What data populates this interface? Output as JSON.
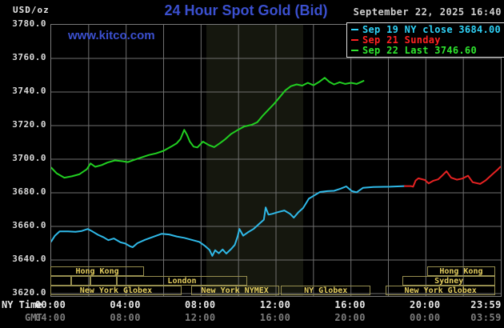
{
  "header": {
    "unit": "USD/oz",
    "title": "24 Hour Spot Gold (Bid)",
    "datetime": "September 22, 2025 16:40",
    "watermark": "www.kitco.com"
  },
  "colors": {
    "title_blue": "#3b50cf",
    "grid": "#6f6f6f",
    "band": "#15170e",
    "blue_line": "#2fb9e8",
    "red_line": "#e62222",
    "green_line": "#21cf21",
    "legend_blue": "#2fd2f7",
    "legend_red": "#ff2222",
    "legend_green": "#2ee52e"
  },
  "legend": [
    {
      "label": "Sep 19 NY close 3684.00",
      "color_key": "legend_blue"
    },
    {
      "label": "Sep 21 Sunday",
      "color_key": "legend_red"
    },
    {
      "label": "Sep 22 Last 3746.60",
      "color_key": "legend_green"
    }
  ],
  "axis": {
    "ny_time_label": "NY Time",
    "gmt_label": "GMT",
    "y_ticks": [
      {
        "value": 3780,
        "label": "3780.0"
      },
      {
        "value": 3760,
        "label": "3760.0"
      },
      {
        "value": 3740,
        "label": "3740.0"
      },
      {
        "value": 3720,
        "label": "3720.0"
      },
      {
        "value": 3700,
        "label": "3700.0"
      },
      {
        "value": 3680,
        "label": "3680.0"
      },
      {
        "value": 3660,
        "label": "3660.0"
      },
      {
        "value": 3640,
        "label": "3640.0"
      },
      {
        "value": 3620,
        "label": "3620.0"
      }
    ],
    "x_ticks": [
      {
        "h": 0,
        "ny": "00:00",
        "gmt": "04:00",
        "shift": 0
      },
      {
        "h": 4,
        "ny": "04:00",
        "gmt": "08:00",
        "shift": 0
      },
      {
        "h": 8,
        "ny": "08:00",
        "gmt": "12:00",
        "shift": 0
      },
      {
        "h": 12,
        "ny": "12:00",
        "gmt": "16:00",
        "shift": 0
      },
      {
        "h": 16,
        "ny": "16:00",
        "gmt": "20:00",
        "shift": 0
      },
      {
        "h": 20,
        "ny": "20:00",
        "gmt": "00:00",
        "shift": 0
      },
      {
        "h": 23.983,
        "ny": "23:59",
        "gmt": "03:59",
        "shift": -17
      }
    ]
  },
  "chart_data": {
    "type": "line",
    "title": "24 Hour Spot Gold (Bid)",
    "ylabel": "USD/oz",
    "ylim": [
      3620,
      3780
    ],
    "xlim_hours": [
      0,
      24
    ],
    "grid": true,
    "nymex_band_hours": [
      8.3,
      13.45
    ],
    "series": [
      {
        "name": "Sep 19 NY close 3684.00",
        "color_key": "blue_line",
        "points": [
          [
            0,
            3651
          ],
          [
            0.2,
            3654.5
          ],
          [
            0.45,
            3657
          ],
          [
            0.9,
            3657
          ],
          [
            1.3,
            3656.8
          ],
          [
            1.6,
            3657.2
          ],
          [
            1.95,
            3658.5
          ],
          [
            2.2,
            3657
          ],
          [
            2.5,
            3655
          ],
          [
            2.8,
            3653.5
          ],
          [
            3.05,
            3651.8
          ],
          [
            3.35,
            3652.8
          ],
          [
            3.7,
            3650.5
          ],
          [
            3.95,
            3649.8
          ],
          [
            4.2,
            3648.2
          ],
          [
            4.35,
            3647.6
          ],
          [
            4.6,
            3650
          ],
          [
            5.0,
            3652
          ],
          [
            5.5,
            3654
          ],
          [
            5.9,
            3655.6
          ],
          [
            6.3,
            3655.2
          ],
          [
            6.7,
            3654
          ],
          [
            7.1,
            3653.2
          ],
          [
            7.5,
            3652
          ],
          [
            7.9,
            3650.8
          ],
          [
            8.2,
            3648.5
          ],
          [
            8.45,
            3646
          ],
          [
            8.6,
            3642.5
          ],
          [
            8.75,
            3645.8
          ],
          [
            8.95,
            3644
          ],
          [
            9.15,
            3646.3
          ],
          [
            9.35,
            3643.8
          ],
          [
            9.6,
            3646.5
          ],
          [
            9.8,
            3649
          ],
          [
            9.95,
            3654
          ],
          [
            10.05,
            3658.5
          ],
          [
            10.25,
            3654.5
          ],
          [
            10.5,
            3656.5
          ],
          [
            10.8,
            3658.5
          ],
          [
            11.1,
            3661.5
          ],
          [
            11.35,
            3664
          ],
          [
            11.45,
            3671.3
          ],
          [
            11.6,
            3667
          ],
          [
            11.8,
            3667.5
          ],
          [
            12.1,
            3668.5
          ],
          [
            12.45,
            3669.5
          ],
          [
            12.75,
            3667.5
          ],
          [
            12.95,
            3665.2
          ],
          [
            13.2,
            3668.5
          ],
          [
            13.45,
            3671
          ],
          [
            13.75,
            3676.5
          ],
          [
            14.05,
            3678.5
          ],
          [
            14.35,
            3680.5
          ],
          [
            14.75,
            3681
          ],
          [
            15.1,
            3681.2
          ],
          [
            15.45,
            3682.5
          ],
          [
            15.75,
            3683.8
          ],
          [
            16.05,
            3681
          ],
          [
            16.3,
            3680.3
          ],
          [
            16.65,
            3683
          ],
          [
            17.2,
            3683.5
          ],
          [
            18.1,
            3683.6
          ],
          [
            18.87,
            3684
          ]
        ]
      },
      {
        "name": "Sep 21 Sunday",
        "color_key": "red_line",
        "points": [
          [
            18.87,
            3684
          ],
          [
            19.2,
            3684
          ],
          [
            19.32,
            3683.6
          ],
          [
            19.45,
            3687.3
          ],
          [
            19.6,
            3688.6
          ],
          [
            19.95,
            3687.6
          ],
          [
            20.15,
            3685.6
          ],
          [
            20.4,
            3687.2
          ],
          [
            20.65,
            3688
          ],
          [
            20.85,
            3690
          ],
          [
            21.1,
            3692.8
          ],
          [
            21.35,
            3689
          ],
          [
            21.65,
            3687.8
          ],
          [
            21.95,
            3688.5
          ],
          [
            22.25,
            3690.2
          ],
          [
            22.5,
            3686.3
          ],
          [
            22.9,
            3685.3
          ],
          [
            23.2,
            3687.5
          ],
          [
            23.45,
            3690
          ],
          [
            23.65,
            3692
          ],
          [
            23.85,
            3694
          ],
          [
            23.98,
            3695.5
          ]
        ]
      },
      {
        "name": "Sep 22 Last 3746.60",
        "color_key": "green_line",
        "points": [
          [
            0,
            3695
          ],
          [
            0.3,
            3691.5
          ],
          [
            0.7,
            3689
          ],
          [
            1.1,
            3689.8
          ],
          [
            1.5,
            3691
          ],
          [
            1.9,
            3694
          ],
          [
            2.1,
            3697.5
          ],
          [
            2.35,
            3695.5
          ],
          [
            2.7,
            3696.5
          ],
          [
            3.0,
            3698
          ],
          [
            3.4,
            3699.3
          ],
          [
            3.8,
            3698.8
          ],
          [
            4.1,
            3698.3
          ],
          [
            4.4,
            3699.5
          ],
          [
            4.8,
            3701
          ],
          [
            5.2,
            3702.5
          ],
          [
            5.6,
            3703.5
          ],
          [
            6.0,
            3705
          ],
          [
            6.4,
            3707.5
          ],
          [
            6.7,
            3709.5
          ],
          [
            6.9,
            3712
          ],
          [
            7.1,
            3717.5
          ],
          [
            7.25,
            3714.5
          ],
          [
            7.4,
            3710.5
          ],
          [
            7.6,
            3707.5
          ],
          [
            7.8,
            3707
          ],
          [
            8.1,
            3710.5
          ],
          [
            8.4,
            3708.5
          ],
          [
            8.7,
            3707.2
          ],
          [
            9.0,
            3709.5
          ],
          [
            9.3,
            3712
          ],
          [
            9.6,
            3715
          ],
          [
            9.9,
            3717
          ],
          [
            10.3,
            3719.5
          ],
          [
            10.7,
            3720.5
          ],
          [
            11.0,
            3722
          ],
          [
            11.3,
            3726
          ],
          [
            11.6,
            3729.5
          ],
          [
            11.9,
            3733
          ],
          [
            12.2,
            3737
          ],
          [
            12.5,
            3741
          ],
          [
            12.8,
            3743.5
          ],
          [
            13.1,
            3744.5
          ],
          [
            13.4,
            3743.8
          ],
          [
            13.7,
            3745.5
          ],
          [
            14.0,
            3744
          ],
          [
            14.3,
            3746
          ],
          [
            14.6,
            3748.5
          ],
          [
            14.85,
            3746
          ],
          [
            15.1,
            3744.5
          ],
          [
            15.4,
            3745.8
          ],
          [
            15.7,
            3744.8
          ],
          [
            16.0,
            3745.5
          ],
          [
            16.3,
            3744.8
          ],
          [
            16.55,
            3746
          ],
          [
            16.67,
            3746.6
          ]
        ]
      }
    ],
    "sessions": [
      {
        "row": 0,
        "start": 0,
        "end": 5.0,
        "label": "Hong Kong"
      },
      {
        "row": 0,
        "start": 20.1,
        "end": 23.75,
        "label": "Hong Kong"
      },
      {
        "row": 1,
        "start": 0,
        "end": 1.1,
        "label": ""
      },
      {
        "row": 1,
        "start": 1.1,
        "end": 2.15,
        "label": ""
      },
      {
        "row": 1,
        "start": 2.15,
        "end": 3.55,
        "label": ""
      },
      {
        "row": 1,
        "start": 3.55,
        "end": 10.5,
        "label": "London"
      },
      {
        "row": 1,
        "start": 18.8,
        "end": 23.75,
        "label": "Sydney"
      },
      {
        "row": 2,
        "start": 0,
        "end": 7.0,
        "label": "New York Globex"
      },
      {
        "row": 2,
        "start": 7.5,
        "end": 12.2,
        "label": "New York NYMEX"
      },
      {
        "row": 2,
        "start": 12.3,
        "end": 17.1,
        "label": "NY Globex"
      },
      {
        "row": 2,
        "start": 17.9,
        "end": 23.75,
        "label": "New York Globex"
      }
    ]
  }
}
